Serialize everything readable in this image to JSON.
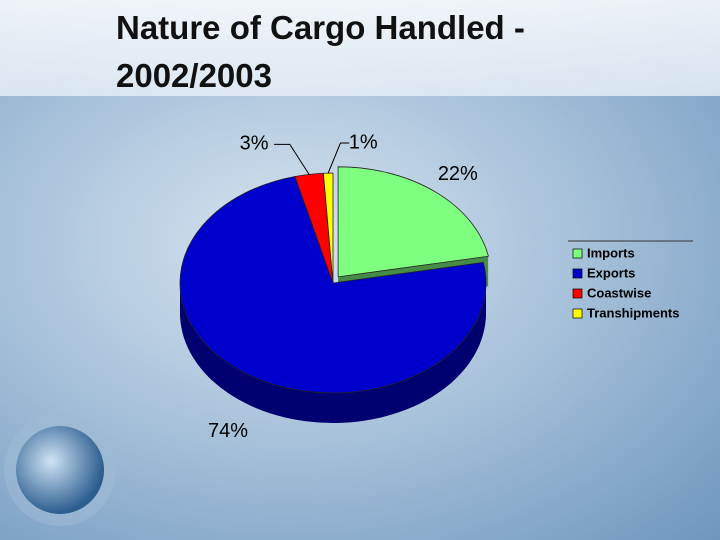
{
  "chart_data": {
    "type": "pie3d",
    "title": "Nature of Cargo Handled - 2002/2003",
    "categories": [
      "Imports",
      "Exports",
      "Coastwise",
      "Transhipments"
    ],
    "values": [
      22,
      74,
      3,
      1
    ],
    "value_labels": [
      "22%",
      "74%",
      "3%",
      "1%"
    ],
    "colors": [
      "#7fff7f",
      "#0000cc",
      "#ff0000",
      "#ffff00"
    ],
    "legend": "right"
  }
}
